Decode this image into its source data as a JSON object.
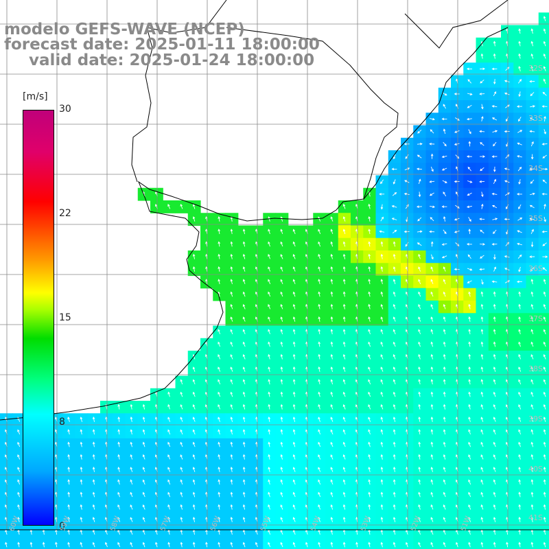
{
  "title": {
    "line1": "modelo GEFS-WAVE (NCEP)",
    "line2": "forecast date: 2025-01-11 18:00:00",
    "line3": "valid date: 2025-01-24 18:00:00"
  },
  "colorbar": {
    "unit": "[m/s]",
    "ticks": [
      "30",
      "22",
      "15",
      "8",
      "0"
    ],
    "tick_values": [
      30,
      22,
      15,
      8,
      0
    ],
    "colors": [
      "#0000ff",
      "#00a8ff",
      "#00ffff",
      "#00ff80",
      "#00dd00",
      "#aaff00",
      "#ffff00",
      "#ff9900",
      "#ff0000",
      "#c0007a"
    ]
  },
  "lat_labels": [
    "32S",
    "33S",
    "34S",
    "35S",
    "36S",
    "37S",
    "38S",
    "39S",
    "40S",
    "41S"
  ],
  "lon_labels": [
    "60W",
    "59W",
    "58W",
    "57W",
    "56W",
    "55W",
    "54W",
    "53W",
    "52W",
    "51W"
  ],
  "map": {
    "land_color": "#ffffff",
    "coast_color": "#000000",
    "grid_color": "#888888",
    "arrow_color": "#ffffff"
  }
}
